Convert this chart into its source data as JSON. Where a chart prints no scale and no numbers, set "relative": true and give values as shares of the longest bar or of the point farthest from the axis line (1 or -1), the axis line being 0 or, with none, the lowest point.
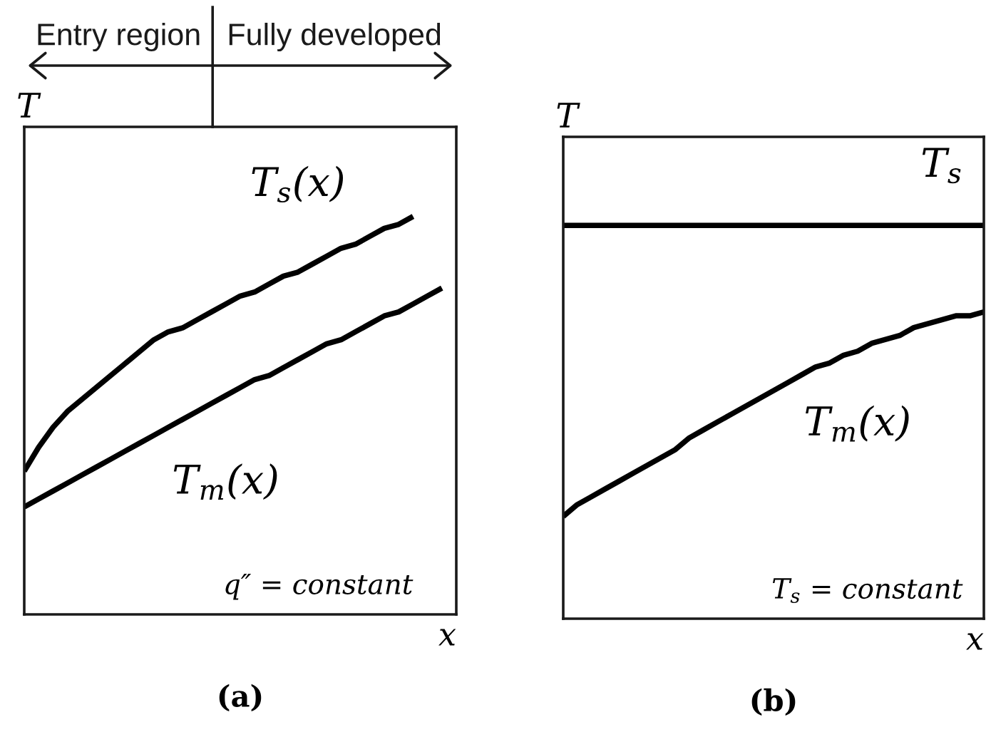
{
  "chart_data": [
    {
      "type": "line",
      "title": "(a)",
      "xlabel": "x",
      "ylabel": "T",
      "relative": true,
      "categories": [
        null,
        null,
        null,
        null,
        null,
        null,
        null,
        null,
        null,
        null,
        null,
        null,
        null,
        null,
        null,
        null,
        null,
        null,
        null,
        null,
        null,
        null,
        null,
        null,
        null,
        null,
        null,
        null,
        null,
        null,
        null
      ],
      "series": [
        {
          "name": "T$_{s}$(x)",
          "color": "#000000",
          "values": [
            0.36,
            0.42,
            0.47,
            0.51,
            0.54,
            0.57,
            0.6,
            0.63,
            0.66,
            0.69,
            0.71,
            0.72,
            0.74,
            0.76,
            0.78,
            0.8,
            0.81,
            0.83,
            0.85,
            0.86,
            0.88,
            0.9,
            0.92,
            0.93,
            0.95,
            0.97,
            0.98,
            1.0,
            null,
            null,
            null
          ]
        },
        {
          "name": "T$_{m}$(x)",
          "color": "#000000",
          "values": [
            0.27,
            0.29,
            0.31,
            0.33,
            0.35,
            0.37,
            0.39,
            0.41,
            0.43,
            0.45,
            0.47,
            0.49,
            0.51,
            0.53,
            0.55,
            0.57,
            0.59,
            0.6,
            0.62,
            0.64,
            0.66,
            0.68,
            0.69,
            0.71,
            0.73,
            0.75,
            0.76,
            0.78,
            0.8,
            0.82,
            null
          ]
        }
      ],
      "annotations": [
        "Entry region",
        "Fully developed",
        "q″ = constant"
      ]
    },
    {
      "type": "line",
      "title": "(b)",
      "xlabel": "x",
      "ylabel": "T",
      "relative": true,
      "categories": [
        null,
        null,
        null,
        null,
        null,
        null,
        null,
        null,
        null,
        null,
        null,
        null,
        null,
        null,
        null,
        null,
        null,
        null,
        null,
        null,
        null,
        null,
        null,
        null,
        null,
        null,
        null,
        null,
        null,
        null,
        null
      ],
      "series": [
        {
          "name": "T$_{s}$",
          "color": "#000000",
          "values": [
            1.0,
            1.0,
            1.0,
            1.0,
            1.0,
            1.0,
            1.0,
            1.0,
            1.0,
            1.0,
            1.0,
            1.0,
            1.0,
            1.0,
            1.0,
            1.0,
            1.0,
            1.0,
            1.0,
            1.0,
            1.0,
            1.0,
            1.0,
            1.0,
            1.0,
            1.0,
            1.0,
            1.0,
            1.0,
            1.0,
            1.0
          ]
        },
        {
          "name": "T$_{m}$(x)",
          "color": "#000000",
          "values": [
            0.26,
            0.29,
            0.31,
            0.33,
            0.35,
            0.37,
            0.39,
            0.41,
            0.43,
            0.46,
            0.48,
            0.5,
            0.52,
            0.54,
            0.56,
            0.58,
            0.6,
            0.62,
            0.64,
            0.65,
            0.67,
            0.68,
            0.7,
            0.71,
            0.72,
            0.74,
            0.75,
            0.76,
            0.77,
            0.77,
            0.78
          ]
        }
      ],
      "annotations": [
        "T$_{s}$ = constant"
      ]
    }
  ]
}
